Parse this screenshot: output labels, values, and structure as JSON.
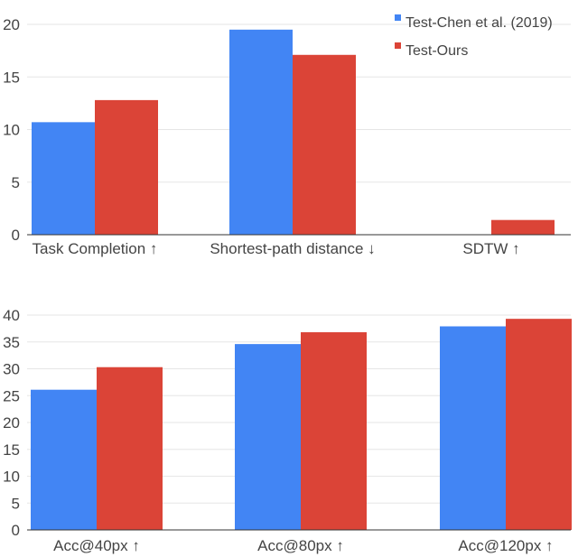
{
  "chart_data": [
    {
      "type": "bar",
      "categories": [
        "Task Completion ↑",
        "Shortest-path distance ↓",
        "SDTW ↑"
      ],
      "series": [
        {
          "name": "Test-Chen et al. (2019)",
          "color": "#4285f4",
          "values": [
            10.7,
            19.5,
            0
          ]
        },
        {
          "name": "Test-Ours",
          "color": "#db4437",
          "values": [
            12.8,
            17.1,
            1.4
          ]
        }
      ],
      "yticks": [
        0,
        5,
        10,
        15,
        20
      ],
      "ylim": [
        0,
        20
      ],
      "legend": "top-right",
      "grid": true
    },
    {
      "type": "bar",
      "categories": [
        "Acc@40px ↑",
        "Acc@80px ↑",
        "Acc@120px ↑"
      ],
      "series": [
        {
          "name": "Test-Chen et al. (2019)",
          "color": "#4285f4",
          "values": [
            26.1,
            34.6,
            37.9
          ]
        },
        {
          "name": "Test-Ours",
          "color": "#db4437",
          "values": [
            30.3,
            36.8,
            39.3
          ]
        }
      ],
      "yticks": [
        0,
        5,
        10,
        15,
        20,
        25,
        30,
        35,
        40
      ],
      "ylim": [
        0,
        40
      ],
      "legend": "none",
      "grid": true
    }
  ]
}
